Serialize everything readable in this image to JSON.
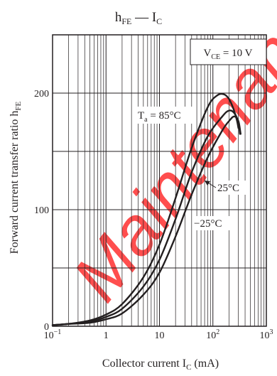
{
  "chart_data": {
    "type": "line",
    "title": {
      "main": "h",
      "sub": "FE",
      "rest": " — I",
      "rest_sub": "C"
    },
    "xlabel": {
      "main": "Collector current  I",
      "sub": "C",
      "rest": "  (mA)"
    },
    "ylabel": {
      "main": "Forward current transfer ratio  h",
      "sub": "FE"
    },
    "xscale": "log",
    "xlim": [
      0.1,
      1000
    ],
    "ylim": [
      0,
      250
    ],
    "grid": true,
    "x_ticks": [
      {
        "value": 0.1,
        "base": "10",
        "exp": "−1"
      },
      {
        "value": 1,
        "base": "1",
        "exp": ""
      },
      {
        "value": 10,
        "base": "10",
        "exp": ""
      },
      {
        "value": 100,
        "base": "10",
        "exp": "2"
      },
      {
        "value": 1000,
        "base": "10",
        "exp": "3"
      }
    ],
    "y_ticks": [
      {
        "value": 0,
        "label": "0"
      },
      {
        "value": 100,
        "label": "100"
      },
      {
        "value": 200,
        "label": "200"
      }
    ],
    "condition_box": {
      "main": "V",
      "sub": "CE",
      "rest": " = 10 V"
    },
    "series": [
      {
        "name": "T_a = 85°C",
        "label": {
          "main": "T",
          "sub": "a",
          "rest": " = 85°C"
        },
        "x": [
          0.1,
          0.2,
          0.5,
          1,
          2,
          5,
          10,
          20,
          40,
          80,
          120,
          160,
          200,
          240,
          280,
          300
        ],
        "y": [
          1,
          2,
          5,
          10,
          19,
          42,
          70,
          110,
          153,
          188,
          198,
          199,
          195,
          187,
          177,
          170
        ]
      },
      {
        "name": "25°C",
        "label": {
          "main": "25°C",
          "sub": "",
          "rest": ""
        },
        "x": [
          0.1,
          0.2,
          0.5,
          1,
          2,
          5,
          10,
          20,
          40,
          80,
          150,
          200,
          250,
          300,
          320
        ],
        "y": [
          1,
          2,
          4,
          8,
          15,
          34,
          57,
          92,
          132,
          163,
          180,
          185,
          183,
          175,
          165
        ]
      },
      {
        "name": "−25°C",
        "label": {
          "main": "−25°C",
          "sub": "",
          "rest": ""
        },
        "x": [
          0.1,
          0.2,
          0.5,
          1,
          2,
          5,
          10,
          20,
          40,
          80,
          150,
          200,
          250,
          300,
          330
        ],
        "y": [
          1,
          2,
          3,
          6,
          11,
          27,
          46,
          77,
          113,
          145,
          168,
          176,
          180,
          176,
          165
        ]
      }
    ]
  },
  "colors": {
    "line": "#231f20",
    "grid": "#231f20",
    "watermark": "#ff3b3b"
  },
  "watermark": "Maintenance"
}
